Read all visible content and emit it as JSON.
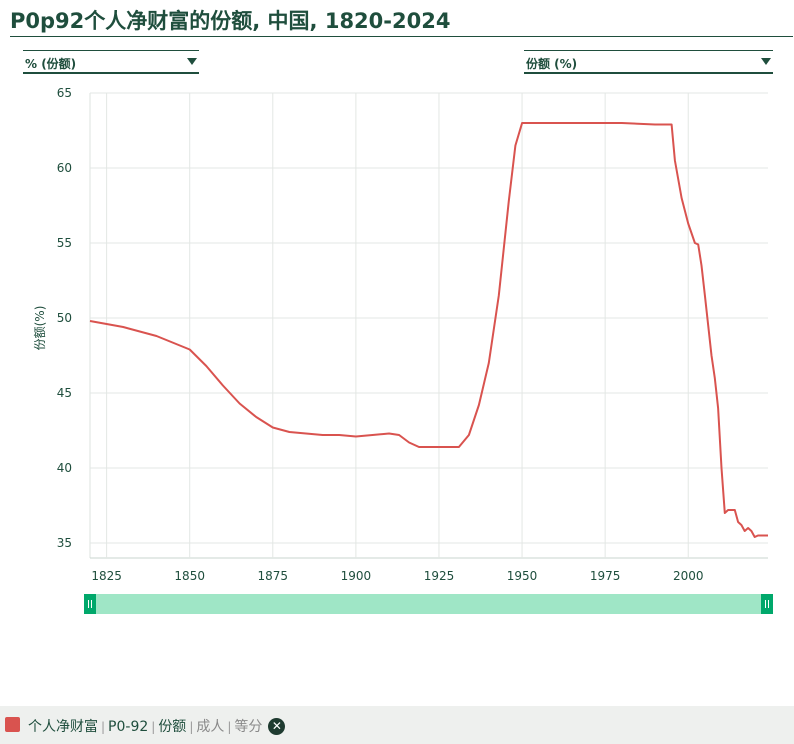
{
  "title": "P0p92个人净财富的份额, 中国, 1820-2024",
  "controls": {
    "unit_select": "% (份额)",
    "metric_select": "份额 (%)"
  },
  "chart_data": {
    "type": "line",
    "title": "P0p92个人净财富的份额, 中国, 1820-2024",
    "ylabel": "份额(%)",
    "xlabel": "",
    "xlim": [
      1820,
      2024
    ],
    "ylim": [
      34,
      65
    ],
    "x_ticks": [
      1825,
      1850,
      1875,
      1900,
      1925,
      1950,
      1975,
      2000
    ],
    "y_ticks": [
      35,
      40,
      45,
      50,
      55,
      60,
      65
    ],
    "grid": true,
    "line_color": "#d9534f",
    "series": [
      {
        "name": "个人净财富",
        "points": [
          [
            1820,
            49.8
          ],
          [
            1830,
            49.4
          ],
          [
            1840,
            48.8
          ],
          [
            1850,
            47.9
          ],
          [
            1855,
            46.8
          ],
          [
            1860,
            45.5
          ],
          [
            1865,
            44.3
          ],
          [
            1870,
            43.4
          ],
          [
            1875,
            42.7
          ],
          [
            1880,
            42.4
          ],
          [
            1885,
            42.3
          ],
          [
            1890,
            42.2
          ],
          [
            1895,
            42.2
          ],
          [
            1900,
            42.1
          ],
          [
            1905,
            42.2
          ],
          [
            1910,
            42.3
          ],
          [
            1913,
            42.2
          ],
          [
            1916,
            41.7
          ],
          [
            1919,
            41.4
          ],
          [
            1925,
            41.4
          ],
          [
            1931,
            41.4
          ],
          [
            1934,
            42.2
          ],
          [
            1937,
            44.2
          ],
          [
            1940,
            47.0
          ],
          [
            1943,
            51.5
          ],
          [
            1946,
            57.8
          ],
          [
            1948,
            61.5
          ],
          [
            1950,
            63.0
          ],
          [
            1955,
            63.0
          ],
          [
            1970,
            63.0
          ],
          [
            1980,
            63.0
          ],
          [
            1990,
            62.9
          ],
          [
            1995,
            62.9
          ],
          [
            1996,
            60.5
          ],
          [
            1998,
            58.0
          ],
          [
            2000,
            56.3
          ],
          [
            2002,
            55.0
          ],
          [
            2003,
            54.9
          ],
          [
            2004,
            53.5
          ],
          [
            2005,
            51.5
          ],
          [
            2006,
            49.5
          ],
          [
            2007,
            47.5
          ],
          [
            2008,
            46.0
          ],
          [
            2009,
            44.0
          ],
          [
            2010,
            40.0
          ],
          [
            2011,
            37.0
          ],
          [
            2012,
            37.2
          ],
          [
            2014,
            37.2
          ],
          [
            2015,
            36.4
          ],
          [
            2016,
            36.2
          ],
          [
            2017,
            35.8
          ],
          [
            2018,
            36.0
          ],
          [
            2019,
            35.8
          ],
          [
            2020,
            35.4
          ],
          [
            2021,
            35.5
          ],
          [
            2024,
            35.5
          ]
        ]
      }
    ]
  },
  "range_slider": {
    "start": 1820,
    "end": 2024
  },
  "footer": {
    "series_label": "个人净财富",
    "percentile": "P0-92",
    "variable": "份额",
    "population": "成人",
    "split": "等分",
    "series_color": "#d9534f"
  }
}
